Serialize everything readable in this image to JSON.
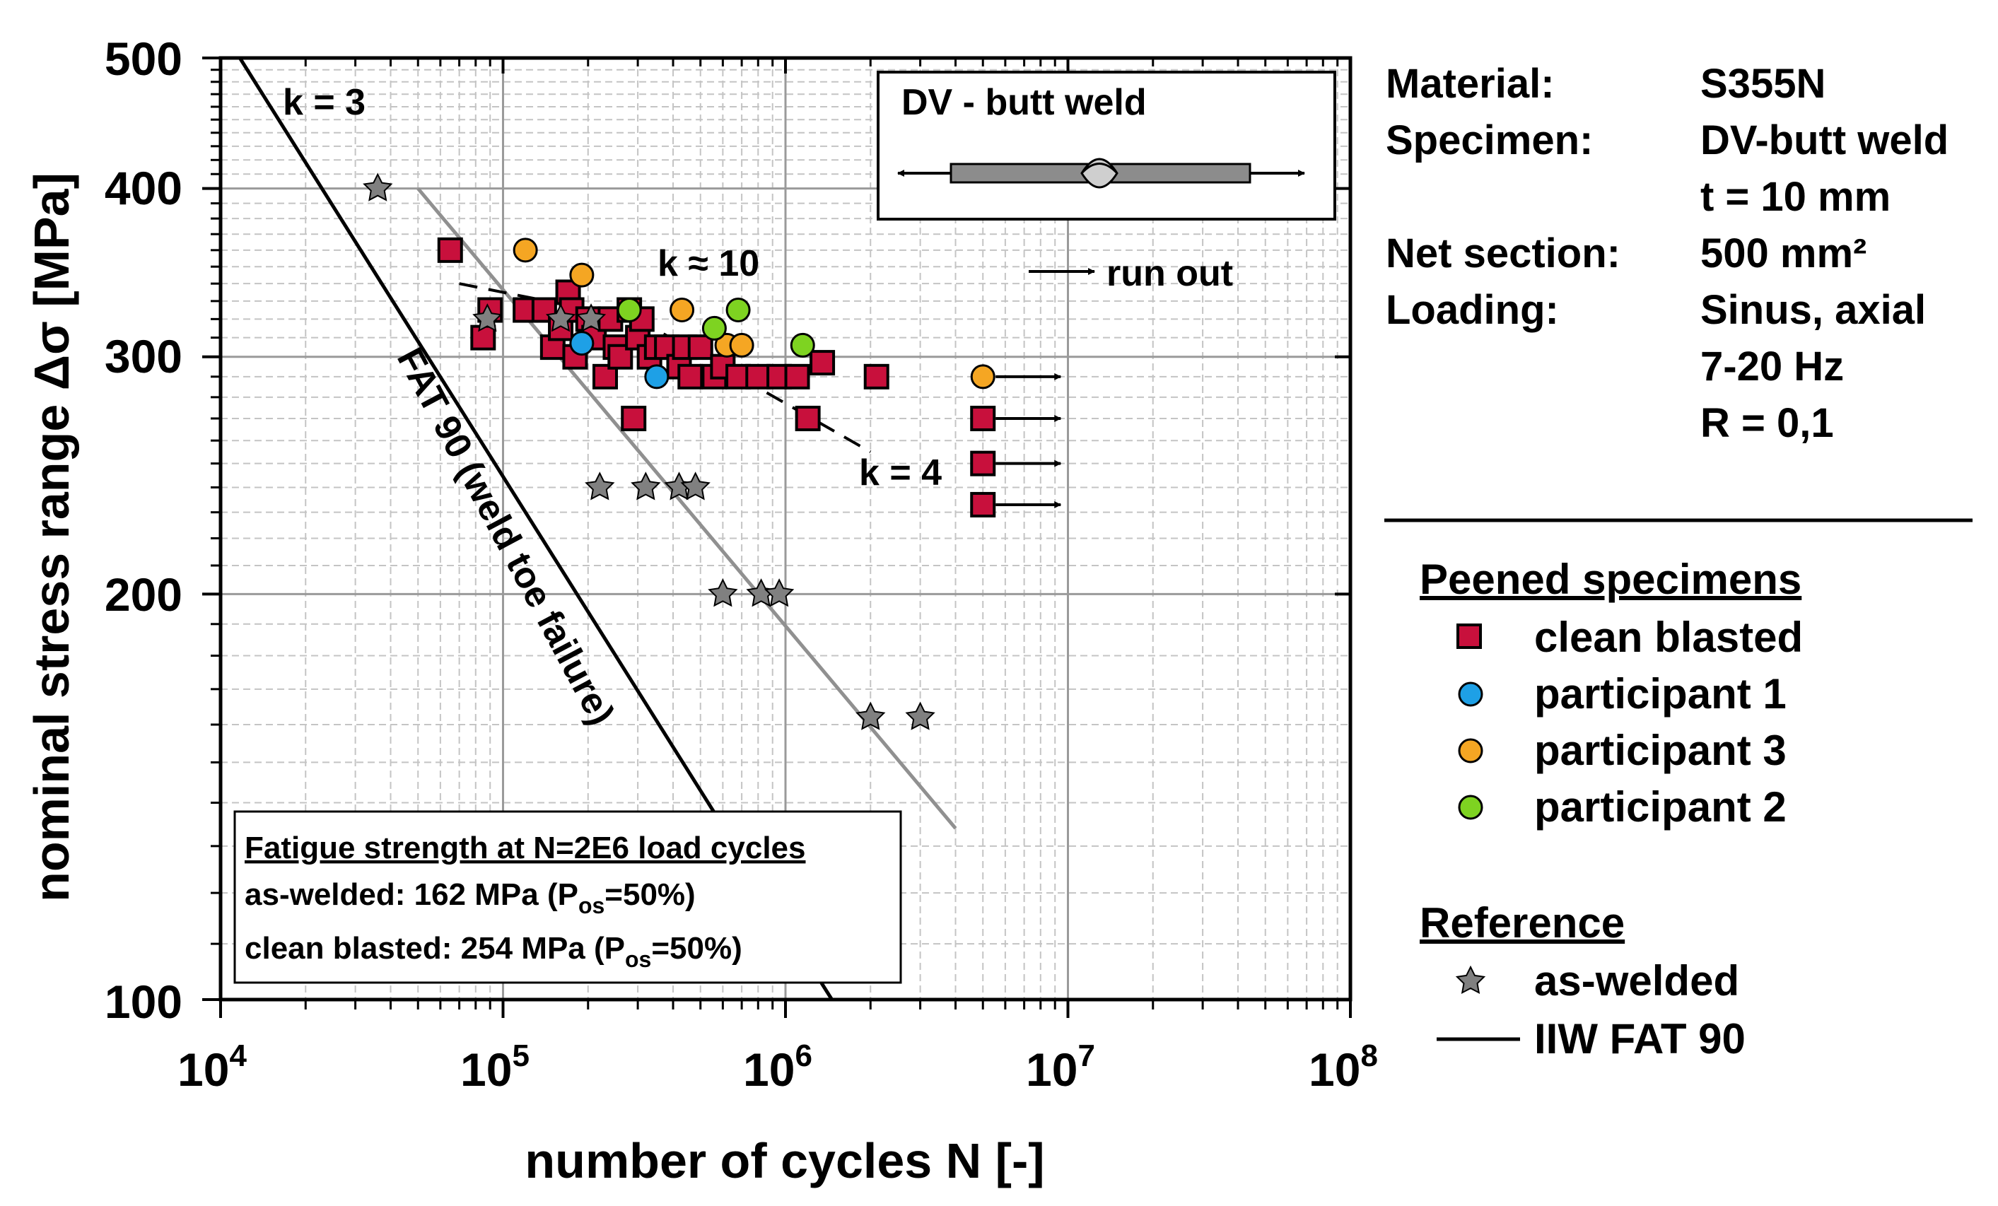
{
  "chart_data": {
    "type": "scatter",
    "xscale": "log",
    "yscale": "log",
    "xlim": [
      10000,
      100000000
    ],
    "ylim": [
      100,
      500
    ],
    "xlabel": "number of cycles N [-]",
    "ylabel": "nominal stress range Δσ [MPa]",
    "x_ticks": [
      {
        "base": "10",
        "exp": "4"
      },
      {
        "base": "10",
        "exp": "5"
      },
      {
        "base": "10",
        "exp": "6"
      },
      {
        "base": "10",
        "exp": "7"
      },
      {
        "base": "10",
        "exp": "8"
      }
    ],
    "y_ticks": [
      "100",
      "200",
      "300",
      "400",
      "500"
    ],
    "series": [
      {
        "name": "clean blasted",
        "marker": "square",
        "color": "#c8103c",
        "points": [
          [
            65000,
            360
          ],
          [
            85000,
            310
          ],
          [
            90000,
            325
          ],
          [
            120000,
            325
          ],
          [
            140000,
            325
          ],
          [
            150000,
            305
          ],
          [
            160000,
            315
          ],
          [
            170000,
            335
          ],
          [
            175000,
            325
          ],
          [
            180000,
            300
          ],
          [
            200000,
            320
          ],
          [
            210000,
            310
          ],
          [
            230000,
            290
          ],
          [
            240000,
            320
          ],
          [
            250000,
            305
          ],
          [
            260000,
            300
          ],
          [
            280000,
            325
          ],
          [
            290000,
            270
          ],
          [
            300000,
            310
          ],
          [
            310000,
            320
          ],
          [
            330000,
            300
          ],
          [
            350000,
            305
          ],
          [
            380000,
            305
          ],
          [
            420000,
            295
          ],
          [
            440000,
            305
          ],
          [
            460000,
            290
          ],
          [
            500000,
            305
          ],
          [
            560000,
            290
          ],
          [
            600000,
            295
          ],
          [
            680000,
            290
          ],
          [
            800000,
            290
          ],
          [
            950000,
            290
          ],
          [
            1100000,
            290
          ],
          [
            1200000,
            270
          ],
          [
            1350000,
            297
          ],
          [
            2100000,
            290
          ]
        ]
      },
      {
        "name": "participant 1",
        "marker": "circle",
        "color": "#1ea0e6",
        "points": [
          [
            190000,
            307
          ],
          [
            350000,
            290
          ]
        ]
      },
      {
        "name": "participant 3",
        "marker": "circle",
        "color": "#f5a623",
        "points": [
          [
            120000,
            360
          ],
          [
            190000,
            345
          ],
          [
            430000,
            325
          ],
          [
            620000,
            306
          ],
          [
            700000,
            306
          ]
        ]
      },
      {
        "name": "participant 2",
        "marker": "circle",
        "color": "#7ed321",
        "points": [
          [
            280000,
            325
          ],
          [
            560000,
            315
          ],
          [
            680000,
            325
          ],
          [
            1150000,
            306
          ]
        ]
      },
      {
        "name": "as-welded",
        "marker": "star",
        "color": "#808080",
        "points": [
          [
            36000,
            400
          ],
          [
            88000,
            320
          ],
          [
            160000,
            320
          ],
          [
            205000,
            320
          ],
          [
            220000,
            240
          ],
          [
            320000,
            240
          ],
          [
            420000,
            240
          ],
          [
            480000,
            240
          ],
          [
            600000,
            200
          ],
          [
            820000,
            200
          ],
          [
            950000,
            200
          ],
          [
            2000000,
            162
          ],
          [
            3000000,
            162
          ]
        ]
      }
    ],
    "run_outs": [
      {
        "x": 5000000,
        "y": 290,
        "marker": "circle",
        "color": "#f5a623"
      },
      {
        "x": 5000000,
        "y": 270,
        "marker": "square",
        "color": "#c8103c"
      },
      {
        "x": 5000000,
        "y": 250,
        "marker": "square",
        "color": "#c8103c"
      },
      {
        "x": 5000000,
        "y": 233,
        "marker": "square",
        "color": "#c8103c"
      }
    ],
    "lines": [
      {
        "name": "IIW FAT 90",
        "color": "#000000",
        "points": [
          [
            11700,
            500
          ],
          [
            1460000,
            100
          ]
        ]
      },
      {
        "name": "as-welded fit",
        "color": "#909090",
        "points": [
          [
            50000,
            400
          ],
          [
            4000000,
            134
          ]
        ]
      },
      {
        "name": "k = 10 dashed",
        "color": "#000000",
        "dashed": true,
        "points": [
          [
            70000,
            340
          ],
          [
            300000,
            320
          ]
        ]
      },
      {
        "name": "k = 4 dashed",
        "color": "#000000",
        "dashed": true,
        "points": [
          [
            300000,
            320
          ],
          [
            2000000,
            255
          ]
        ]
      }
    ],
    "annotations": {
      "k3": "k = 3",
      "k10": "k ≈ 10",
      "k4": "k = 4",
      "fat_label": "FAT 90 (weld toe failure)",
      "run_out": "run out"
    },
    "inset": {
      "title": "DV - butt weld"
    },
    "strength_box": {
      "title": "Fatigue strength at N=2E6 load cycles",
      "row1_prefix": "as-welded: 162 MPa (P",
      "row1_sub": "os",
      "row1_suffix": "=50%)",
      "row2_prefix": "clean blasted: 254 MPa (P",
      "row2_sub": "os",
      "row2_suffix": "=50%)"
    }
  },
  "side_info": [
    {
      "label": "Material:",
      "value": "S355N"
    },
    {
      "label": "Specimen:",
      "value": "DV-butt weld"
    },
    {
      "label": "",
      "value": "t = 10 mm"
    },
    {
      "label": "Net section:",
      "value": "500 mm²"
    },
    {
      "label": "Loading:",
      "value": "Sinus, axial"
    },
    {
      "label": "",
      "value": "7-20 Hz"
    },
    {
      "label": "",
      "value": "R = 0,1"
    }
  ],
  "legend": {
    "peened_title": "Peened specimens",
    "peened_items": [
      {
        "label": "clean blasted",
        "marker": "square",
        "color": "#c8103c"
      },
      {
        "label": "participant 1",
        "marker": "circle",
        "color": "#1ea0e6"
      },
      {
        "label": "participant 3",
        "marker": "circle",
        "color": "#f5a623"
      },
      {
        "label": "participant 2",
        "marker": "circle",
        "color": "#7ed321"
      }
    ],
    "reference_title": "Reference",
    "reference_items": [
      {
        "label": "as-welded",
        "marker": "star",
        "color": "#808080"
      },
      {
        "label": "IIW FAT 90",
        "marker": "line",
        "color": "#000000"
      }
    ]
  }
}
